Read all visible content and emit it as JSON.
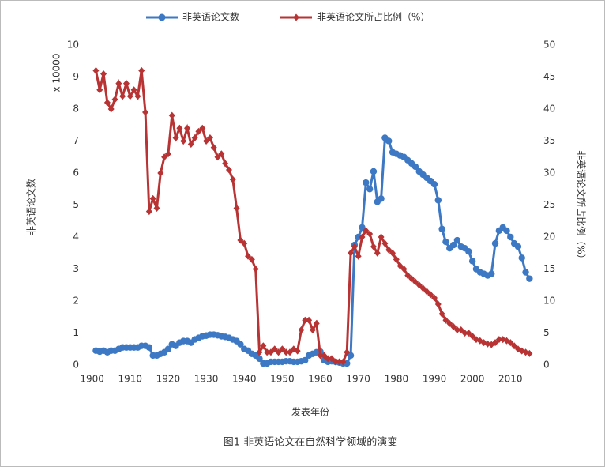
{
  "chart_data": {
    "type": "line",
    "legend": "top",
    "grid": false,
    "x_label": "发表年份",
    "y_label": "非英语论文数",
    "y2_label": "非英语论文所占比例（%）",
    "annotation": "x 10000",
    "caption": "图1 非英语论文在自然科学领域的演变",
    "xlim": [
      1898,
      2017
    ],
    "xticks": [
      1900,
      1910,
      1920,
      1930,
      1940,
      1950,
      1960,
      1970,
      1980,
      1990,
      2000,
      2010
    ],
    "ylim": [
      0,
      10
    ],
    "yticks": [
      0,
      1,
      2,
      3,
      4,
      5,
      6,
      7,
      8,
      9,
      10
    ],
    "y2lim": [
      0,
      50
    ],
    "y2ticks": [
      0,
      5,
      10,
      15,
      20,
      25,
      30,
      35,
      40,
      45,
      50
    ],
    "x": [
      1901,
      1902,
      1903,
      1904,
      1905,
      1906,
      1907,
      1908,
      1909,
      1910,
      1911,
      1912,
      1913,
      1914,
      1915,
      1916,
      1917,
      1918,
      1919,
      1920,
      1921,
      1922,
      1923,
      1924,
      1925,
      1926,
      1927,
      1928,
      1929,
      1930,
      1931,
      1932,
      1933,
      1934,
      1935,
      1936,
      1937,
      1938,
      1939,
      1940,
      1941,
      1942,
      1943,
      1944,
      1945,
      1946,
      1947,
      1948,
      1949,
      1950,
      1951,
      1952,
      1953,
      1954,
      1955,
      1956,
      1957,
      1958,
      1959,
      1960,
      1961,
      1962,
      1963,
      1964,
      1965,
      1966,
      1967,
      1968,
      1969,
      1970,
      1971,
      1972,
      1973,
      1974,
      1975,
      1976,
      1977,
      1978,
      1979,
      1980,
      1981,
      1982,
      1983,
      1984,
      1985,
      1986,
      1987,
      1988,
      1989,
      1990,
      1991,
      1992,
      1993,
      1994,
      1995,
      1996,
      1997,
      1998,
      1999,
      2000,
      2001,
      2002,
      2003,
      2004,
      2005,
      2006,
      2007,
      2008,
      2009,
      2010,
      2011,
      2012,
      2013,
      2014,
      2015
    ],
    "series": [
      {
        "name": "非英语论文数",
        "color": "#3c78c3",
        "marker": "circle",
        "values": [
          0.45,
          0.42,
          0.45,
          0.4,
          0.45,
          0.45,
          0.5,
          0.55,
          0.55,
          0.55,
          0.55,
          0.55,
          0.6,
          0.6,
          0.55,
          0.3,
          0.3,
          0.35,
          0.4,
          0.5,
          0.65,
          0.6,
          0.7,
          0.75,
          0.75,
          0.7,
          0.8,
          0.85,
          0.9,
          0.92,
          0.95,
          0.95,
          0.93,
          0.9,
          0.88,
          0.85,
          0.8,
          0.75,
          0.65,
          0.5,
          0.45,
          0.35,
          0.3,
          0.2,
          0.05,
          0.05,
          0.1,
          0.1,
          0.1,
          0.1,
          0.12,
          0.12,
          0.1,
          0.1,
          0.12,
          0.15,
          0.3,
          0.35,
          0.4,
          0.42,
          0.15,
          0.1,
          0.12,
          0.1,
          0.08,
          0.05,
          0.05,
          0.3,
          3.75,
          4.0,
          4.3,
          5.7,
          5.5,
          6.05,
          5.1,
          5.2,
          7.1,
          7.0,
          6.65,
          6.6,
          6.55,
          6.5,
          6.4,
          6.3,
          6.2,
          6.05,
          5.95,
          5.85,
          5.75,
          5.65,
          5.15,
          4.25,
          3.85,
          3.65,
          3.75,
          3.9,
          3.7,
          3.65,
          3.55,
          3.25,
          3.0,
          2.9,
          2.85,
          2.8,
          2.85,
          3.8,
          4.2,
          4.3,
          4.2,
          4.0,
          3.8,
          3.7,
          3.35,
          2.9,
          2.7
        ]
      },
      {
        "name": "非英语论文所占比例（%）",
        "color": "#b83333",
        "marker": "diamond",
        "axis": "y2",
        "values": [
          46,
          43,
          45.5,
          41,
          40,
          41.5,
          44,
          42,
          44,
          42,
          43,
          42,
          46,
          39.5,
          24,
          26,
          24.5,
          30,
          32.5,
          33,
          39,
          35.5,
          37,
          35,
          37,
          34.5,
          35.5,
          36.5,
          37,
          35,
          35.5,
          34,
          32.5,
          33,
          31.5,
          30.5,
          29,
          24.5,
          19.5,
          19,
          17,
          16.5,
          15,
          2,
          3,
          2,
          2,
          2.5,
          2,
          2.5,
          2,
          2,
          2.5,
          2.2,
          5.5,
          7,
          7,
          5.5,
          6.5,
          1.5,
          1.5,
          1,
          1,
          0.5,
          0.5,
          0.5,
          2,
          17.5,
          18.5,
          17,
          20,
          21,
          20.5,
          18.5,
          17.5,
          20,
          19,
          18,
          17.5,
          16.5,
          15.5,
          15,
          14,
          13.5,
          13,
          12.5,
          12,
          11.5,
          11,
          10.5,
          9.5,
          8,
          7,
          6.5,
          6,
          5.5,
          5.5,
          5,
          5,
          4.5,
          4,
          3.8,
          3.5,
          3.3,
          3.2,
          3.5,
          4,
          4,
          3.8,
          3.5,
          3,
          2.5,
          2.2,
          2,
          1.8
        ]
      }
    ]
  }
}
